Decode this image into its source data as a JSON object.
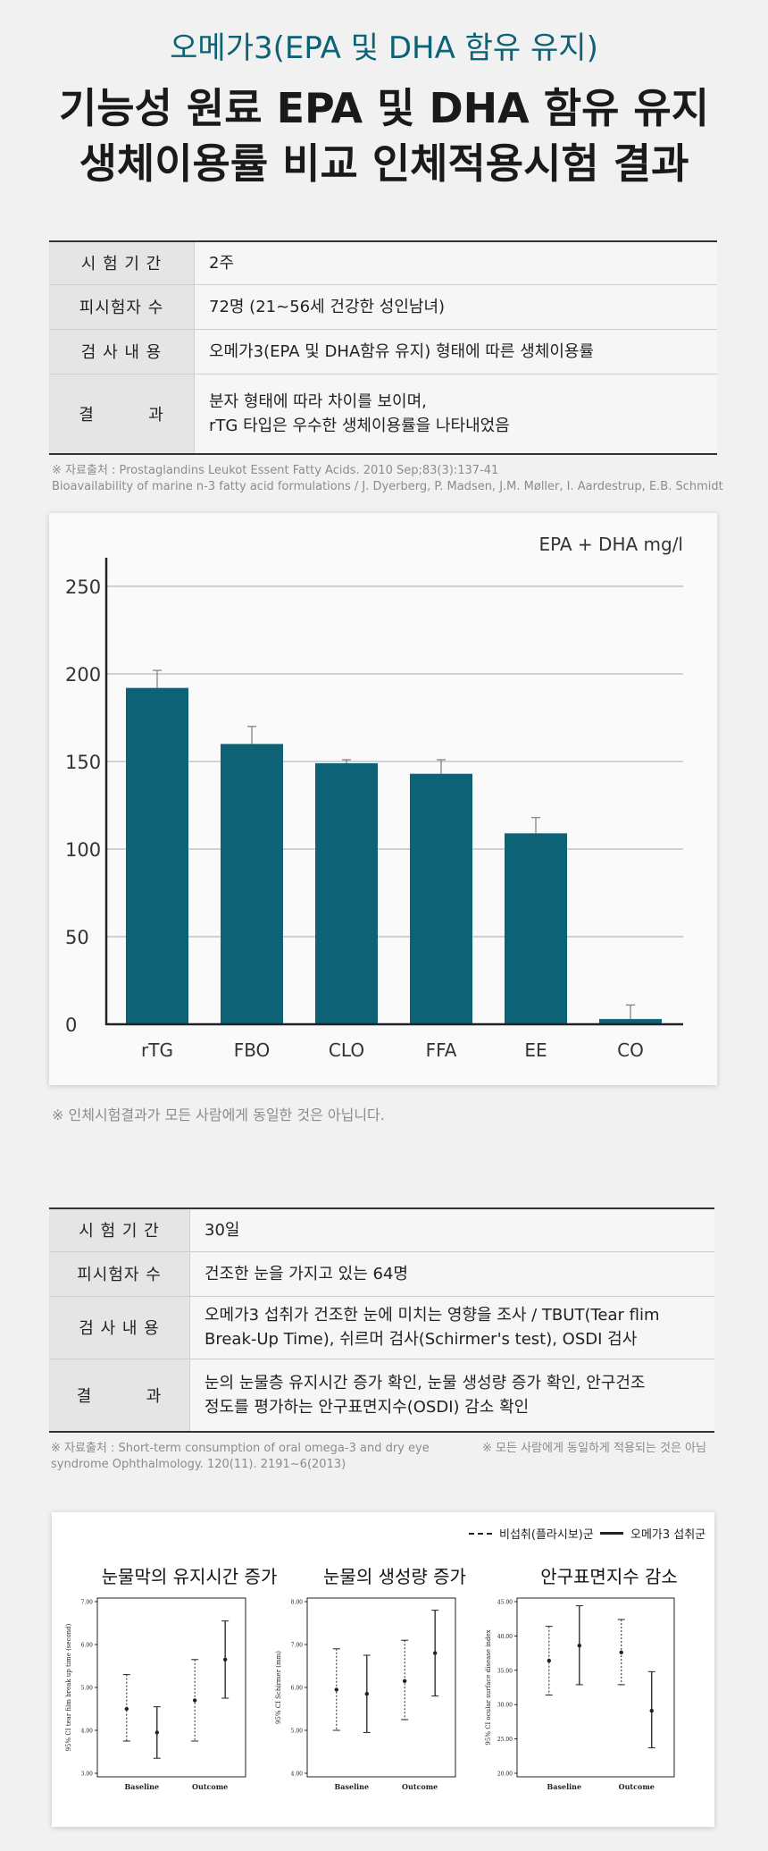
{
  "header": {
    "subtitle": "오메가3(EPA 및 DHA 함유 유지)",
    "title_line1": "기능성 원료 EPA 및 DHA 함유 유지",
    "title_line2": "생체이용률 비교 인체적용시험 결과"
  },
  "study1": {
    "rows": [
      {
        "label": "시 험 기 간",
        "value": "2주"
      },
      {
        "label": "피시험자 수",
        "value": "72명 (21~56세 건강한 성인남녀)"
      },
      {
        "label": "검 사 내 용",
        "value": "오메가3(EPA 및 DHA함유 유지) 형태에 따른 생체이용률"
      },
      {
        "label": "결         과",
        "value": "분자 형태에 따라 차이를 보이며,",
        "value2": "rTG 타입은 우수한 생체이용률을 나타내었음"
      }
    ],
    "source_line1": "※ 자료출처 : Prostaglandins Leukot Essent Fatty Acids. 2010 Sep;83(3):137-41",
    "source_line2": "Bioavailability of marine n-3 fatty acid formulations / J. Dyerberg, P. Madsen, J.M. Møller, I. Aardestrup, E.B. Schmidt",
    "disclaimer": "※ 인체시험결과가 모든 사람에게 동일한 것은 아닙니다."
  },
  "study2": {
    "rows": [
      {
        "label": "시 험 기 간",
        "value": "30일"
      },
      {
        "label": "피시험자 수",
        "value": "건조한 눈을 가지고 있는 64명"
      },
      {
        "label": "검 사 내 용",
        "value": "오메가3 섭취가 건조한 눈에 미치는 영향을 조사 / TBUT(Tear flim",
        "value2": "Break-Up Time), 쉬르머 검사(Schirmer's test), OSDI 검사"
      },
      {
        "label": "결         과",
        "value": "눈의 눈물층 유지시간 증가 확인, 눈물 생성량 증가 확인, 안구건조",
        "value2": "정도를 평가하는 안구표면지수(OSDI) 감소 확인"
      }
    ],
    "source_line1": "※ 자료출처 : Short-term consumption of oral omega-3 and dry eye",
    "source_line2": "syndrome Ophthalmology. 120(11). 2191~6(2013)",
    "note": "※ 모든 사람에게 동일하게 적용되는 것은 아님",
    "legend_placebo": "비섭취(플라시보)군",
    "legend_omega": "오메가3 섭취군"
  },
  "chart_data": [
    {
      "type": "bar",
      "ylabel": "EPA + DHA mg/l",
      "categories": [
        "rTG",
        "FBO",
        "CLO",
        "FFA",
        "EE",
        "CO"
      ],
      "values": [
        192,
        160,
        149,
        143,
        109,
        3
      ],
      "error_upper": [
        202,
        170,
        151,
        151,
        118,
        11
      ],
      "yticks": [
        0,
        50,
        100,
        150,
        200,
        250
      ],
      "ylim": [
        0,
        250
      ],
      "color": "#0d6276",
      "grid": true
    },
    {
      "type": "scatter",
      "title": "눈물막의 유지시간 증가",
      "ylabel": "95% CI tear film break up time (second)",
      "categories": [
        "Baseline",
        "Outcome"
      ],
      "yticks": [
        "3.00",
        "4.00",
        "5.00",
        "6.00",
        "7.00"
      ],
      "ylim": [
        3,
        7
      ],
      "series": [
        {
          "name": "비섭취(플라시보)군",
          "x": "Baseline",
          "mean": 4.5,
          "low": 3.75,
          "high": 5.3,
          "style": "dashed"
        },
        {
          "name": "오메가3 섭취군",
          "x": "Baseline",
          "mean": 3.95,
          "low": 3.35,
          "high": 4.55,
          "style": "solid"
        },
        {
          "name": "비섭취(플라시보)군",
          "x": "Outcome",
          "mean": 4.7,
          "low": 3.75,
          "high": 5.65,
          "style": "dashed"
        },
        {
          "name": "오메가3 섭취군",
          "x": "Outcome",
          "mean": 5.65,
          "low": 4.75,
          "high": 6.55,
          "style": "solid"
        }
      ]
    },
    {
      "type": "scatter",
      "title": "눈물의 생성량 증가",
      "ylabel": "95% CI Schirmer (mm)",
      "categories": [
        "Baseline",
        "Outcome"
      ],
      "yticks": [
        "4.00",
        "5.00",
        "6.00",
        "7.00",
        "8.00"
      ],
      "ylim": [
        4,
        8
      ],
      "series": [
        {
          "name": "비섭취(플라시보)군",
          "x": "Baseline",
          "mean": 5.95,
          "low": 5.0,
          "high": 6.9,
          "style": "dashed"
        },
        {
          "name": "오메가3 섭취군",
          "x": "Baseline",
          "mean": 5.85,
          "low": 4.95,
          "high": 6.75,
          "style": "solid"
        },
        {
          "name": "비섭취(플라시보)군",
          "x": "Outcome",
          "mean": 6.15,
          "low": 5.25,
          "high": 7.1,
          "style": "dashed"
        },
        {
          "name": "오메가3 섭취군",
          "x": "Outcome",
          "mean": 6.8,
          "low": 5.8,
          "high": 7.8,
          "style": "solid"
        }
      ]
    },
    {
      "type": "scatter",
      "title": "안구표면지수 감소",
      "ylabel": "95% CI ocular surface disease index",
      "categories": [
        "Baseline",
        "Outcome"
      ],
      "yticks": [
        "20.00",
        "25.00",
        "30.00",
        "35.00",
        "40.00",
        "45.00"
      ],
      "ylim": [
        20,
        45
      ],
      "series": [
        {
          "name": "비섭취(플라시보)군",
          "x": "Baseline",
          "mean": 36.4,
          "low": 31.4,
          "high": 41.4,
          "style": "dashed"
        },
        {
          "name": "오메가3 섭취군",
          "x": "Baseline",
          "mean": 38.6,
          "low": 32.9,
          "high": 44.4,
          "style": "solid"
        },
        {
          "name": "비섭취(플라시보)군",
          "x": "Outcome",
          "mean": 37.6,
          "low": 32.9,
          "high": 42.4,
          "style": "dashed"
        },
        {
          "name": "오메가3 섭취군",
          "x": "Outcome",
          "mean": 29.1,
          "low": 23.7,
          "high": 34.8,
          "style": "solid"
        }
      ]
    }
  ]
}
